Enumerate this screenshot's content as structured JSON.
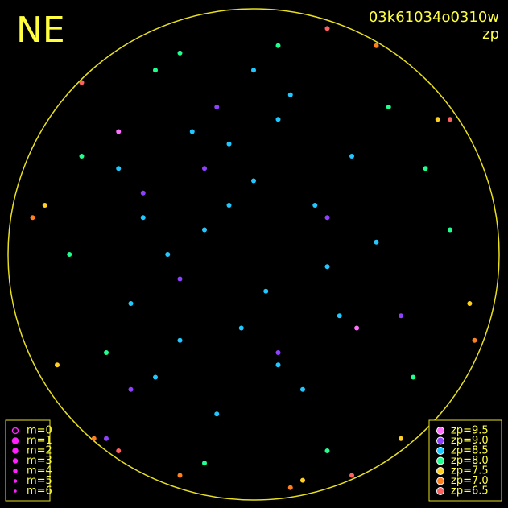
{
  "chart_data": {
    "type": "scatter",
    "title": "NE",
    "subtitle": "03k61034o0310w",
    "label": "zp",
    "xlim": [
      -1,
      1
    ],
    "ylim": [
      -1,
      1
    ],
    "size_legend": [
      "m=0",
      "m=1",
      "m=2",
      "m=3",
      "m=4",
      "m=5",
      "m=6"
    ],
    "series": [
      {
        "name": "zp=9.5",
        "color": "#ff70ff",
        "x": [
          -0.55,
          0.42
        ],
        "y": [
          0.5,
          -0.3
        ]
      },
      {
        "name": "zp=9.0",
        "color": "#9040ff",
        "x": [
          -0.45,
          -0.3,
          -0.2,
          0.1,
          -0.5,
          0.6,
          -0.15,
          0.3,
          -0.6
        ],
        "y": [
          0.25,
          -0.1,
          0.35,
          -0.4,
          -0.55,
          -0.25,
          0.6,
          0.15,
          -0.75
        ]
      },
      {
        "name": "zp=8.5",
        "color": "#20c8ff",
        "x": [
          -0.1,
          0.0,
          0.1,
          -0.2,
          -0.35,
          0.25,
          -0.5,
          -0.4,
          0.05,
          0.3,
          -0.25,
          0.15,
          -0.05,
          0.4,
          -0.3,
          -0.45,
          0.2,
          -0.15,
          0.35,
          0.5,
          -0.55,
          0.0,
          -0.1,
          0.1
        ],
        "y": [
          0.45,
          0.3,
          0.55,
          0.1,
          0.0,
          0.2,
          -0.2,
          -0.5,
          -0.15,
          -0.05,
          0.5,
          0.65,
          -0.3,
          0.4,
          -0.35,
          0.15,
          -0.55,
          -0.65,
          -0.25,
          0.05,
          0.35,
          0.75,
          0.2,
          -0.45
        ]
      },
      {
        "name": "zp=8.0",
        "color": "#20ff90",
        "x": [
          -0.7,
          0.7,
          0.55,
          -0.6,
          0.1,
          -0.2,
          0.65,
          -0.75,
          0.3,
          -0.4,
          0.8,
          -0.3
        ],
        "y": [
          0.4,
          0.35,
          0.6,
          -0.4,
          0.85,
          -0.85,
          -0.5,
          0.0,
          -0.8,
          0.75,
          0.1,
          0.82
        ]
      },
      {
        "name": "zp=7.5",
        "color": "#ffd020",
        "x": [
          -0.85,
          0.88,
          0.75,
          -0.8,
          0.2,
          0.6
        ],
        "y": [
          0.2,
          -0.2,
          0.55,
          -0.45,
          -0.92,
          -0.75
        ]
      },
      {
        "name": "zp=7.0",
        "color": "#ff8020",
        "x": [
          -0.65,
          0.5,
          0.9,
          -0.9,
          0.15,
          -0.3
        ],
        "y": [
          -0.75,
          0.85,
          -0.35,
          0.15,
          -0.95,
          -0.9
        ]
      },
      {
        "name": "zp=6.5",
        "color": "#ff6060",
        "x": [
          0.3,
          -0.7,
          0.8,
          -0.55,
          0.4
        ],
        "y": [
          0.92,
          0.7,
          0.55,
          -0.8,
          -0.9
        ]
      }
    ]
  }
}
